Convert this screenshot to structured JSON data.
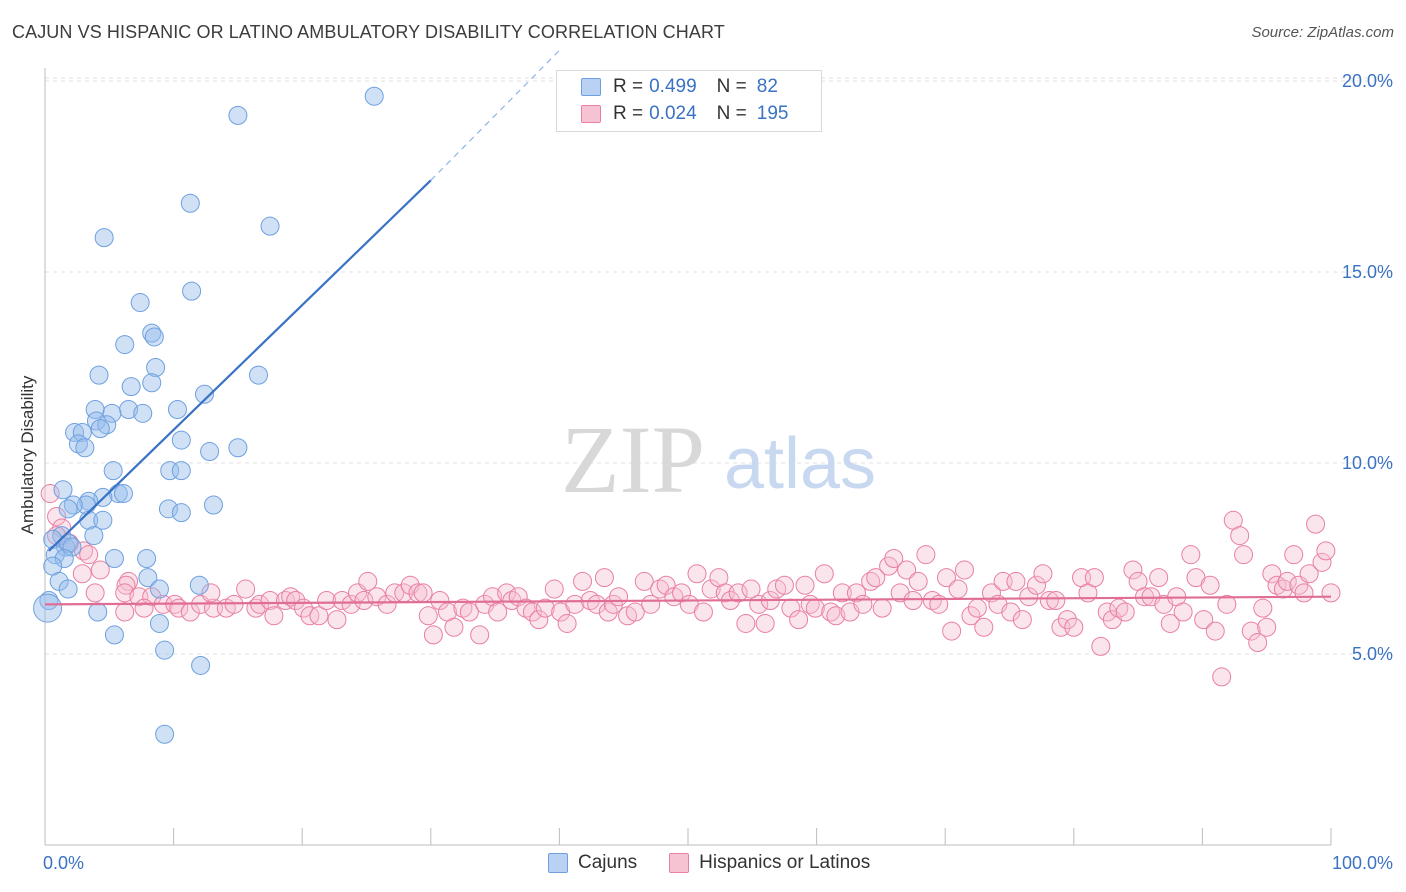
{
  "title": "CAJUN VS HISPANIC OR LATINO AMBULATORY DISABILITY CORRELATION CHART",
  "source": "Source: ZipAtlas.com",
  "watermark": {
    "zip": "ZIP",
    "atlas": "atlas"
  },
  "legend": {
    "r_label": "R =",
    "n_label": "N =",
    "entries": [
      {
        "name": "Cajuns",
        "r": "0.499",
        "n": "82",
        "color": "#6ea0e0",
        "fill": "#b9d2f3"
      },
      {
        "name": "Hispanics or Latinos",
        "r": "0.024",
        "n": "195",
        "color": "#e97fa2",
        "fill": "#f6c3d3"
      }
    ]
  },
  "chart_data": {
    "type": "scatter",
    "title": "CAJUN VS HISPANIC OR LATINO AMBULATORY DISABILITY CORRELATION CHART",
    "xlabel": "",
    "ylabel": "Ambulatory Disability",
    "xlim": [
      0,
      100
    ],
    "ylim": [
      0,
      21
    ],
    "x_tick_labels": [
      "0.0%",
      "100.0%"
    ],
    "y_ticks": [
      5,
      10,
      15,
      20
    ],
    "y_tick_labels": [
      "5.0%",
      "10.0%",
      "15.0%",
      "20.0%"
    ],
    "grid": true,
    "series": [
      {
        "name": "Cajuns",
        "color": "#3a72c4",
        "trend": {
          "x": [
            0.3,
            30
          ],
          "y": [
            7.7,
            17.4
          ],
          "dashed_to": {
            "x": 40,
            "y": 20.8
          }
        },
        "points": [
          [
            25.6,
            19.6
          ],
          [
            15.0,
            19.1
          ],
          [
            11.3,
            16.8
          ],
          [
            17.5,
            16.2
          ],
          [
            4.6,
            15.9
          ],
          [
            7.4,
            14.2
          ],
          [
            11.4,
            14.5
          ],
          [
            8.3,
            13.4
          ],
          [
            8.5,
            13.3
          ],
          [
            6.2,
            13.1
          ],
          [
            8.6,
            12.5
          ],
          [
            4.2,
            12.3
          ],
          [
            8.3,
            12.1
          ],
          [
            16.6,
            12.3
          ],
          [
            6.7,
            12.0
          ],
          [
            12.4,
            11.8
          ],
          [
            6.5,
            11.4
          ],
          [
            5.2,
            11.3
          ],
          [
            7.6,
            11.3
          ],
          [
            3.9,
            11.4
          ],
          [
            10.3,
            11.4
          ],
          [
            4.0,
            11.1
          ],
          [
            4.8,
            11.0
          ],
          [
            4.3,
            10.9
          ],
          [
            2.3,
            10.8
          ],
          [
            2.9,
            10.8
          ],
          [
            10.6,
            10.6
          ],
          [
            2.6,
            10.5
          ],
          [
            3.1,
            10.4
          ],
          [
            15.0,
            10.4
          ],
          [
            12.8,
            10.3
          ],
          [
            9.7,
            9.8
          ],
          [
            10.6,
            9.8
          ],
          [
            5.3,
            9.8
          ],
          [
            1.4,
            9.3
          ],
          [
            5.7,
            9.2
          ],
          [
            6.1,
            9.2
          ],
          [
            4.5,
            9.1
          ],
          [
            3.4,
            9.0
          ],
          [
            3.2,
            8.9
          ],
          [
            2.2,
            8.9
          ],
          [
            1.8,
            8.8
          ],
          [
            13.1,
            8.9
          ],
          [
            9.6,
            8.8
          ],
          [
            10.6,
            8.7
          ],
          [
            3.4,
            8.5
          ],
          [
            4.5,
            8.5
          ],
          [
            3.8,
            8.1
          ],
          [
            1.3,
            8.1
          ],
          [
            0.6,
            8.0
          ],
          [
            1.6,
            7.8
          ],
          [
            1.8,
            7.9
          ],
          [
            2.1,
            7.8
          ],
          [
            0.8,
            7.6
          ],
          [
            1.5,
            7.5
          ],
          [
            5.4,
            7.5
          ],
          [
            7.9,
            7.5
          ],
          [
            0.6,
            7.3
          ],
          [
            8.0,
            7.0
          ],
          [
            1.1,
            6.9
          ],
          [
            1.8,
            6.7
          ],
          [
            8.9,
            6.7
          ],
          [
            12.0,
            6.8
          ],
          [
            0.3,
            6.4
          ],
          [
            0.2,
            6.2
          ],
          [
            4.1,
            6.1
          ],
          [
            8.9,
            5.8
          ],
          [
            5.4,
            5.5
          ],
          [
            9.3,
            5.1
          ],
          [
            12.1,
            4.7
          ],
          [
            9.3,
            2.9
          ]
        ]
      },
      {
        "name": "Hispanics or Latinos",
        "color": "#e97fa2",
        "trend": {
          "x": [
            0,
            100
          ],
          "y": [
            6.3,
            6.5
          ]
        },
        "points": [
          [
            0.4,
            9.2
          ],
          [
            0.9,
            8.6
          ],
          [
            1.3,
            8.3
          ],
          [
            0.9,
            8.1
          ],
          [
            1.9,
            7.9
          ],
          [
            3.0,
            7.7
          ],
          [
            3.4,
            7.6
          ],
          [
            4.3,
            7.2
          ],
          [
            2.9,
            7.1
          ],
          [
            6.5,
            6.9
          ],
          [
            6.3,
            6.8
          ],
          [
            3.9,
            6.6
          ],
          [
            6.2,
            6.6
          ],
          [
            7.3,
            6.5
          ],
          [
            8.3,
            6.5
          ],
          [
            9.2,
            6.3
          ],
          [
            6.2,
            6.1
          ],
          [
            7.7,
            6.2
          ],
          [
            10.1,
            6.3
          ],
          [
            10.4,
            6.2
          ],
          [
            11.3,
            6.1
          ],
          [
            12.1,
            6.3
          ],
          [
            13.1,
            6.2
          ],
          [
            14.1,
            6.2
          ],
          [
            12.9,
            6.6
          ],
          [
            15.6,
            6.7
          ],
          [
            14.7,
            6.3
          ],
          [
            16.4,
            6.2
          ],
          [
            16.7,
            6.3
          ],
          [
            17.5,
            6.4
          ],
          [
            17.8,
            6.0
          ],
          [
            18.7,
            6.4
          ],
          [
            19.1,
            6.5
          ],
          [
            19.5,
            6.4
          ],
          [
            20.1,
            6.2
          ],
          [
            20.6,
            6.0
          ],
          [
            21.3,
            6.0
          ],
          [
            21.9,
            6.4
          ],
          [
            22.7,
            5.9
          ],
          [
            23.1,
            6.4
          ],
          [
            23.8,
            6.3
          ],
          [
            24.3,
            6.6
          ],
          [
            24.8,
            6.4
          ],
          [
            25.1,
            6.9
          ],
          [
            25.8,
            6.5
          ],
          [
            26.6,
            6.3
          ],
          [
            27.2,
            6.6
          ],
          [
            27.9,
            6.6
          ],
          [
            28.4,
            6.8
          ],
          [
            29.0,
            6.6
          ],
          [
            29.4,
            6.6
          ],
          [
            29.8,
            6.0
          ],
          [
            30.2,
            5.5
          ],
          [
            30.7,
            6.4
          ],
          [
            31.3,
            6.1
          ],
          [
            31.8,
            5.7
          ],
          [
            32.5,
            6.2
          ],
          [
            33.0,
            6.1
          ],
          [
            33.8,
            5.5
          ],
          [
            34.2,
            6.3
          ],
          [
            34.8,
            6.5
          ],
          [
            35.2,
            6.1
          ],
          [
            35.9,
            6.6
          ],
          [
            36.3,
            6.4
          ],
          [
            36.8,
            6.5
          ],
          [
            37.4,
            6.2
          ],
          [
            37.9,
            6.1
          ],
          [
            38.4,
            5.9
          ],
          [
            38.9,
            6.2
          ],
          [
            39.6,
            6.7
          ],
          [
            40.1,
            6.1
          ],
          [
            40.6,
            5.8
          ],
          [
            41.2,
            6.3
          ],
          [
            41.8,
            6.9
          ],
          [
            42.4,
            6.4
          ],
          [
            42.9,
            6.3
          ],
          [
            43.5,
            7.0
          ],
          [
            43.8,
            6.1
          ],
          [
            44.2,
            6.3
          ],
          [
            44.6,
            6.5
          ],
          [
            45.3,
            6.0
          ],
          [
            45.9,
            6.1
          ],
          [
            46.6,
            6.9
          ],
          [
            47.1,
            6.3
          ],
          [
            47.8,
            6.7
          ],
          [
            48.3,
            6.8
          ],
          [
            48.9,
            6.5
          ],
          [
            49.5,
            6.6
          ],
          [
            50.1,
            6.3
          ],
          [
            50.7,
            7.1
          ],
          [
            51.2,
            6.1
          ],
          [
            51.8,
            6.7
          ],
          [
            52.4,
            7.0
          ],
          [
            52.9,
            6.6
          ],
          [
            53.3,
            6.4
          ],
          [
            53.9,
            6.6
          ],
          [
            54.5,
            5.8
          ],
          [
            54.9,
            6.7
          ],
          [
            55.5,
            6.3
          ],
          [
            56.0,
            5.8
          ],
          [
            56.4,
            6.4
          ],
          [
            56.9,
            6.7
          ],
          [
            57.5,
            6.8
          ],
          [
            58.0,
            6.2
          ],
          [
            58.6,
            5.9
          ],
          [
            59.1,
            6.8
          ],
          [
            59.5,
            6.3
          ],
          [
            59.9,
            6.2
          ],
          [
            60.6,
            7.1
          ],
          [
            61.1,
            6.1
          ],
          [
            61.5,
            6.0
          ],
          [
            62.0,
            6.6
          ],
          [
            62.6,
            6.1
          ],
          [
            63.1,
            6.6
          ],
          [
            63.6,
            6.3
          ],
          [
            64.2,
            6.9
          ],
          [
            64.6,
            7.0
          ],
          [
            65.1,
            6.2
          ],
          [
            65.6,
            7.3
          ],
          [
            66.0,
            7.5
          ],
          [
            66.5,
            6.6
          ],
          [
            67.0,
            7.2
          ],
          [
            67.5,
            6.4
          ],
          [
            67.9,
            6.9
          ],
          [
            68.5,
            7.6
          ],
          [
            69.0,
            6.4
          ],
          [
            69.5,
            6.3
          ],
          [
            70.1,
            7.0
          ],
          [
            70.5,
            5.6
          ],
          [
            71.0,
            6.7
          ],
          [
            71.5,
            7.2
          ],
          [
            72.0,
            6.0
          ],
          [
            72.5,
            6.2
          ],
          [
            73.0,
            5.7
          ],
          [
            73.6,
            6.6
          ],
          [
            74.1,
            6.3
          ],
          [
            74.5,
            6.9
          ],
          [
            75.1,
            6.1
          ],
          [
            75.5,
            6.9
          ],
          [
            76.0,
            5.9
          ],
          [
            76.5,
            6.5
          ],
          [
            77.1,
            6.8
          ],
          [
            77.6,
            7.1
          ],
          [
            78.1,
            6.4
          ],
          [
            78.6,
            6.4
          ],
          [
            79.0,
            5.7
          ],
          [
            79.5,
            5.9
          ],
          [
            80.0,
            5.7
          ],
          [
            80.6,
            7.0
          ],
          [
            81.1,
            6.6
          ],
          [
            81.6,
            7.0
          ],
          [
            82.1,
            5.2
          ],
          [
            82.6,
            6.1
          ],
          [
            83.0,
            5.9
          ],
          [
            83.5,
            6.2
          ],
          [
            84.0,
            6.1
          ],
          [
            84.6,
            7.2
          ],
          [
            85.0,
            6.9
          ],
          [
            85.5,
            6.5
          ],
          [
            86.0,
            6.5
          ],
          [
            86.6,
            7.0
          ],
          [
            87.0,
            6.3
          ],
          [
            87.5,
            5.8
          ],
          [
            88.0,
            6.5
          ],
          [
            88.5,
            6.1
          ],
          [
            89.1,
            7.6
          ],
          [
            89.5,
            7.0
          ],
          [
            90.1,
            5.9
          ],
          [
            90.6,
            6.8
          ],
          [
            91.0,
            5.6
          ],
          [
            91.5,
            4.4
          ],
          [
            91.9,
            6.3
          ],
          [
            92.4,
            8.5
          ],
          [
            92.9,
            8.1
          ],
          [
            93.2,
            7.6
          ],
          [
            93.8,
            5.6
          ],
          [
            94.3,
            5.3
          ],
          [
            94.7,
            6.2
          ],
          [
            95.0,
            5.7
          ],
          [
            95.4,
            7.1
          ],
          [
            95.8,
            6.8
          ],
          [
            96.3,
            6.7
          ],
          [
            96.6,
            6.9
          ],
          [
            97.1,
            7.6
          ],
          [
            97.5,
            6.8
          ],
          [
            97.9,
            6.6
          ],
          [
            98.3,
            7.1
          ],
          [
            98.8,
            8.4
          ],
          [
            99.3,
            7.4
          ],
          [
            99.6,
            7.7
          ],
          [
            100.0,
            6.6
          ]
        ]
      }
    ]
  }
}
